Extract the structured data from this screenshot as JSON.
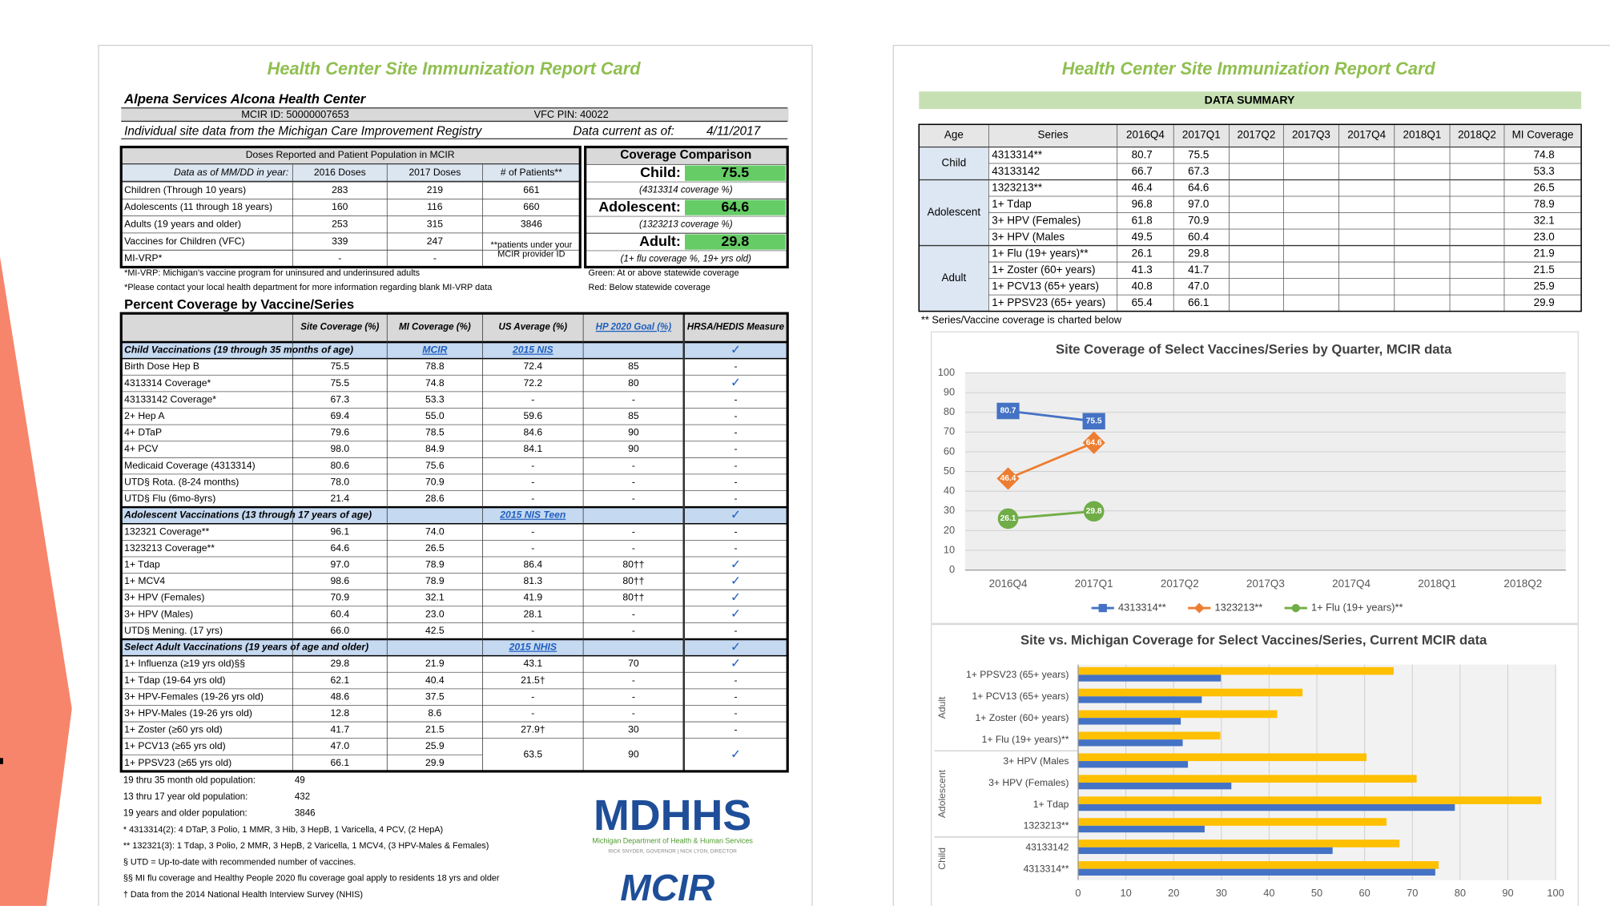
{
  "left": {
    "title": "Health Center Site Immunization Report Card",
    "center": "Alpena Services Alcona Health Center",
    "mcir_id": "MCIR ID: 50000007653",
    "vfc_pin": "VFC PIN: 40022",
    "source": "Individual site data from the Michigan Care Improvement Registry",
    "current_label": "Data current as of:",
    "current_date": "4/11/2017",
    "doses": {
      "title": "Doses Reported and Patient Population in MCIR",
      "header": [
        "Data as of MM/DD in year:",
        "2016 Doses",
        "2017 Doses",
        "# of Patients**"
      ],
      "rows": [
        [
          "Children (Through 10 years)",
          "283",
          "219",
          "661"
        ],
        [
          "Adolescents (11 through 18 years)",
          "160",
          "116",
          "660"
        ],
        [
          "Adults (19 years and older)",
          "253",
          "315",
          "3846"
        ],
        [
          "Vaccines for Children (VFC)",
          "339",
          "247",
          "**patients under your MCIR provider ID"
        ],
        [
          "MI-VRP*",
          "-",
          "-"
        ]
      ]
    },
    "comparison": {
      "title": "Coverage Comparison",
      "rows": [
        {
          "label": "Child:",
          "value": "75.5",
          "note": "(4313314 coverage %)"
        },
        {
          "label": "Adolescent:",
          "value": "64.6",
          "note": "(1323213 coverage %)"
        },
        {
          "label": "Adult:",
          "value": "29.8",
          "note": "(1+ flu coverage %, 19+ yrs old)"
        }
      ]
    },
    "notes": [
      "*MI-VRP: Michigan's vaccine program for uninsured and underinsured adults",
      "*Please contact your local health department for more information regarding blank MI-VRP data"
    ],
    "legend_notes": [
      "Green: At or above statewide coverage",
      "Red: Below statewide coverage"
    ],
    "coverage_title": "Percent Coverage by Vaccine/Series",
    "coverage": {
      "header": [
        "Site Coverage (%)",
        "MI Coverage (%)",
        "US Average (%)",
        "HP 2020 Goal (%)",
        "HRSA/HEDIS Measure"
      ],
      "sections": [
        {
          "title": "Child Vaccinations (19 through 35 months of age)",
          "mi_source": "MCIR",
          "us_source": "2015 NIS",
          "hrsa": "✓",
          "rows": [
            [
              "Birth Dose Hep B",
              "75.5",
              "78.8",
              "72.4",
              "85",
              "-"
            ],
            [
              "4313314 Coverage*",
              "75.5",
              "74.8",
              "72.2",
              "80",
              "✓"
            ],
            [
              "43133142 Coverage*",
              "67.3",
              "53.3",
              "-",
              "-",
              "-"
            ],
            [
              "2+ Hep A",
              "69.4",
              "55.0",
              "59.6",
              "85",
              "-"
            ],
            [
              "4+ DTaP",
              "79.6",
              "78.5",
              "84.6",
              "90",
              "-"
            ],
            [
              "4+ PCV",
              "98.0",
              "84.9",
              "84.1",
              "90",
              "-"
            ],
            [
              "Medicaid Coverage (4313314)",
              "80.6",
              "75.6",
              "-",
              "-",
              "-"
            ],
            [
              "UTD§ Rota. (8-24 months)",
              "78.0",
              "70.9",
              "-",
              "-",
              "-"
            ],
            [
              "UTD§ Flu (6mo-8yrs)",
              "21.4",
              "28.6",
              "-",
              "-",
              "-"
            ]
          ]
        },
        {
          "title": "Adolescent Vaccinations (13 through 17 years of age)",
          "us_source": "2015 NIS Teen",
          "hrsa": "✓",
          "rows": [
            [
              "132321 Coverage**",
              "96.1",
              "74.0",
              "-",
              "-",
              "-"
            ],
            [
              "1323213 Coverage**",
              "64.6",
              "26.5",
              "-",
              "-",
              "-"
            ],
            [
              "1+ Tdap",
              "97.0",
              "78.9",
              "86.4",
              "80††",
              "✓"
            ],
            [
              "1+ MCV4",
              "98.6",
              "78.9",
              "81.3",
              "80††",
              "✓"
            ],
            [
              "3+ HPV (Females)",
              "70.9",
              "32.1",
              "41.9",
              "80††",
              "✓"
            ],
            [
              "3+ HPV (Males)",
              "60.4",
              "23.0",
              "28.1",
              "-",
              "✓"
            ],
            [
              "UTD§ Mening. (17 yrs)",
              "66.0",
              "42.5",
              "-",
              "-",
              "-"
            ]
          ]
        },
        {
          "title": "Select Adult Vaccinations (19 years of age and older)",
          "us_source": "2015 NHIS",
          "hrsa": "✓",
          "rows": [
            [
              "1+ Influenza (≥19 yrs old)§§",
              "29.8",
              "21.9",
              "43.1",
              "70",
              "✓"
            ],
            [
              "1+ Tdap (19-64 yrs old)",
              "62.1",
              "40.4",
              "21.5†",
              "-",
              "-"
            ],
            [
              "3+ HPV-Females (19-26 yrs old)",
              "48.6",
              "37.5",
              "-",
              "-",
              "-"
            ],
            [
              "3+ HPV-Males (19-26 yrs old)",
              "12.8",
              "8.6",
              "-",
              "-",
              "-"
            ],
            [
              "1+ Zoster (≥60 yrs old)",
              "41.7",
              "21.5",
              "27.9†",
              "30",
              "-"
            ],
            [
              "1+ PCV13 (≥65 yrs old)",
              "47.0",
              "25.9",
              "63.5",
              "90",
              "✓"
            ],
            [
              "1+ PPSV23 (≥65 yrs old)",
              "66.1",
              "29.9"
            ]
          ]
        }
      ]
    },
    "populations": [
      {
        "label": "19 thru 35 month old population:",
        "value": "49"
      },
      {
        "label": "13 thru 17 year old population:",
        "value": "432"
      },
      {
        "label": "19 years and older population:",
        "value": "3846"
      }
    ],
    "footnotes": [
      "* 4313314(2): 4 DTaP, 3 Polio, 1 MMR, 3 Hib, 3 HepB, 1 Varicella, 4 PCV, (2 HepA)",
      "** 132321(3): 1 Tdap, 3 Polio, 2 MMR, 3 HepB, 2 Varicella, 1 MCV4, (3 HPV-Males & Females)",
      "§ UTD = Up-to-date with recommended number of vaccines.",
      "§§ MI flu coverage and Healthy People 2020 flu coverage goal apply to residents 18 yrs and older",
      "† Data from the 2014 National Health Interview Survey (NHIS)"
    ],
    "logo": {
      "name": "MDHHS",
      "department": "Michigan Department of Health & Human Services",
      "officials": "RICK SNYDER, GOVERNOR | NICK LYON, DIRECTOR",
      "registry": "MCIR"
    }
  },
  "right": {
    "title": "Health Center Site Immunization Report Card",
    "summary_title": "DATA SUMMARY",
    "table": {
      "header": [
        "Age",
        "Series",
        "2016Q4",
        "2017Q1",
        "2017Q2",
        "2017Q3",
        "2017Q4",
        "2018Q1",
        "2018Q2",
        "MI Coverage"
      ],
      "groups": [
        {
          "age": "Child",
          "rows": [
            {
              "series": "4313314**",
              "values": [
                "80.7",
                "75.5"
              ],
              "mi": "74.8"
            },
            {
              "series": "43133142",
              "values": [
                "66.7",
                "67.3"
              ],
              "mi": "53.3"
            }
          ]
        },
        {
          "age": "Adolescent",
          "rows": [
            {
              "series": "1323213**",
              "values": [
                "46.4",
                "64.6"
              ],
              "mi": "26.5"
            },
            {
              "series": "1+ Tdap",
              "values": [
                "96.8",
                "97.0"
              ],
              "mi": "78.9"
            },
            {
              "series": "3+ HPV (Females)",
              "values": [
                "61.8",
                "70.9"
              ],
              "mi": "32.1"
            },
            {
              "series": "3+ HPV (Males",
              "values": [
                "49.5",
                "60.4"
              ],
              "mi": "23.0"
            }
          ]
        },
        {
          "age": "Adult",
          "rows": [
            {
              "series": "1+ Flu (19+ years)**",
              "values": [
                "26.1",
                "29.8"
              ],
              "mi": "21.9"
            },
            {
              "series": "1+ Zoster (60+ years)",
              "values": [
                "41.3",
                "41.7"
              ],
              "mi": "21.5"
            },
            {
              "series": "1+ PCV13 (65+ years)",
              "values": [
                "40.8",
                "47.0"
              ],
              "mi": "25.9"
            },
            {
              "series": "1+ PPSV23 (65+ years)",
              "values": [
                "65.4",
                "66.1"
              ],
              "mi": "29.9"
            }
          ]
        }
      ]
    },
    "footnote": "** Series/Vaccine coverage is charted below"
  },
  "chart_data": [
    {
      "type": "line",
      "title": "Site Coverage of Select Vaccines/Series by Quarter, MCIR data",
      "categories": [
        "2016Q4",
        "2017Q1",
        "2017Q2",
        "2017Q3",
        "2017Q4",
        "2018Q1",
        "2018Q2"
      ],
      "series": [
        {
          "name": "4313314**",
          "color": "#4472c4",
          "marker": "square",
          "values": [
            80.7,
            75.5,
            null,
            null,
            null,
            null,
            null
          ]
        },
        {
          "name": "1323213**",
          "color": "#ed7d31",
          "marker": "diamond",
          "values": [
            46.4,
            64.6,
            null,
            null,
            null,
            null,
            null
          ]
        },
        {
          "name": "1+ Flu (19+ years)**",
          "color": "#70ad47",
          "marker": "circle",
          "values": [
            26.1,
            29.8,
            null,
            null,
            null,
            null,
            null
          ]
        }
      ],
      "ylim": [
        0,
        100
      ],
      "yticks": [
        0,
        10,
        20,
        30,
        40,
        50,
        60,
        70,
        80,
        90,
        100
      ],
      "grid": true,
      "legend": "bottom",
      "data_labels": true
    },
    {
      "type": "hbar",
      "title": "Site vs. Michigan Coverage for Select Vaccines/Series, Current MCIR data",
      "groups": [
        {
          "label": "Adult",
          "categories": [
            "1+ PPSV23 (65+ years)",
            "1+ PCV13 (65+ years)",
            "1+ Zoster (60+ years)",
            "1+ Flu (19+ years)**"
          ]
        },
        {
          "label": "Adolescent",
          "categories": [
            "3+ HPV (Males",
            "3+ HPV (Females)",
            "1+ Tdap",
            "1323213**"
          ]
        },
        {
          "label": "Child",
          "categories": [
            "43133142",
            "4313314**"
          ]
        }
      ],
      "series": [
        {
          "color": "#ffc000",
          "values": [
            66.1,
            47.0,
            41.7,
            29.8,
            60.4,
            70.9,
            97.0,
            64.6,
            67.3,
            75.5
          ]
        },
        {
          "color": "#4472c4",
          "values": [
            29.9,
            25.9,
            21.5,
            21.9,
            23.0,
            32.1,
            78.9,
            26.5,
            53.3,
            74.8
          ]
        }
      ],
      "xlim": [
        0,
        100
      ],
      "xticks": [
        0,
        10,
        20,
        30,
        40,
        50,
        60,
        70,
        80,
        90,
        100
      ],
      "grid": true
    }
  ]
}
